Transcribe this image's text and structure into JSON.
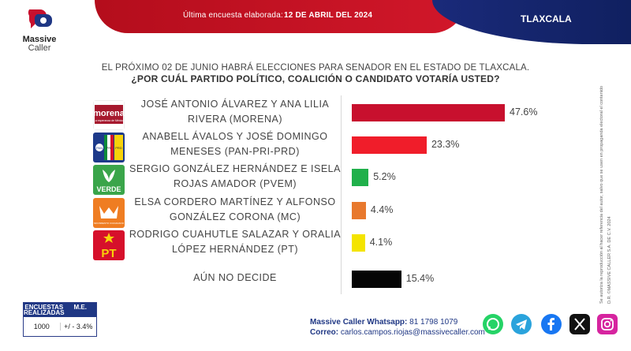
{
  "header": {
    "last_survey_label": "Última encuesta elaborada:",
    "date": "12 DE ABRIL DEL 2024",
    "state": "TLAXCALA"
  },
  "brand": {
    "name": "Massive",
    "sub": "Caller"
  },
  "question": {
    "line1": "EL PRÓXIMO 02 DE JUNIO HABRÁ ELECCIONES PARA SENADOR EN EL ESTADO DE TLAXCALA.",
    "line2": "¿POR CUÁL PARTIDO POLÍTICO, COALICIÓN O CANDIDATO  VOTARÍA USTED?"
  },
  "chart_data": {
    "type": "bar",
    "orientation": "horizontal",
    "categories": [
      [
        "JOSÉ ANTONIO ÁLVAREZ Y ANA LILIA",
        "RIVERA (MORENA)"
      ],
      [
        "ANABELL ÁVALOS Y JOSÉ DOMINGO",
        "MENESES (PAN-PRI-PRD)"
      ],
      [
        "SERGIO GONZÁLEZ HERNÁNDEZ  E ISELA",
        "ROJAS AMADOR (PVEM)"
      ],
      [
        "ELSA CORDERO MARTÍNEZ Y ALFONSO",
        "GONZÁLEZ CORONA (MC)"
      ],
      [
        "RODRIGO CUAHUTLE SALAZAR Y ORALIA",
        "LÓPEZ HERNÁNDEZ (PT)"
      ],
      [
        "AÚN NO DECIDE"
      ]
    ],
    "values": [
      47.6,
      23.3,
      5.2,
      4.4,
      4.1,
      15.4
    ],
    "value_labels": [
      "47.6%",
      "23.3%",
      "5.2%",
      "4.4%",
      "4.1%",
      "15.4%"
    ],
    "colors": [
      "#c8102e",
      "#f01d2a",
      "#20b04b",
      "#e8792e",
      "#f4e400",
      "#050505"
    ],
    "party_logos": [
      "morena",
      "pan-pri-prd",
      "verde",
      "mc",
      "pt",
      ""
    ],
    "xlim": [
      0,
      50
    ]
  },
  "party_text": {
    "morena": "morena",
    "morena_sub": "La esperanza de México",
    "verde": "VERDE",
    "pt": "PT",
    "mc": "MOVIMIENTO CIUDADANO",
    "pan": "PAN",
    "pri": "PRI",
    "prd": "PRD"
  },
  "side_notes": [
    "D.R. ©MASSIVE CALLER S.A. DE C.V. 2024",
    "Se autoriza la reproducción al hacer referencia del autor, salvo que se usen en propaganda electoral el contenido"
  ],
  "table": {
    "headers": [
      "ENCUESTAS REALIZADAS",
      "M.E."
    ],
    "values": [
      "1000",
      "+/ - 3.4%"
    ]
  },
  "contact": {
    "whatsapp_label": "Massive Caller Whatsapp:",
    "whatsapp": "81 1798 1079",
    "email_label": "Correo:",
    "email": "carlos.campos.riojas@massivecaller.com"
  },
  "social": [
    "whatsapp-icon",
    "telegram-icon",
    "facebook-icon",
    "x-icon",
    "instagram-icon"
  ],
  "social_colors": [
    "#25d366",
    "#2aa3dc",
    "#1877f2",
    "#111111",
    "#d6249f"
  ]
}
